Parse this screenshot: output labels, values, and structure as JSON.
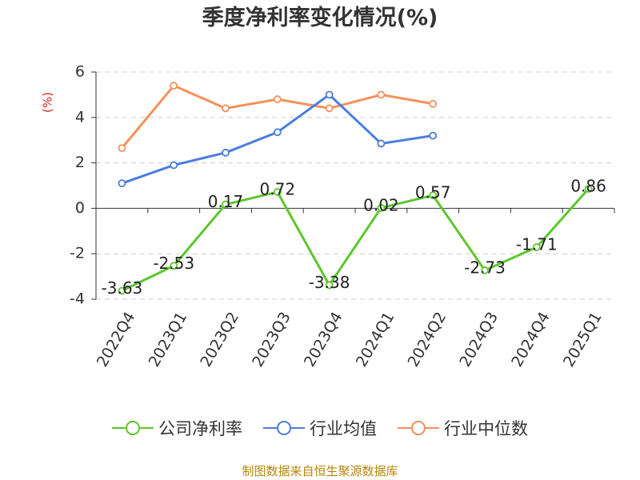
{
  "chart_data": {
    "type": "line",
    "title": "季度净利率变化情况(%)",
    "ylabel": "(%)",
    "xlabel": "",
    "categories": [
      "2022Q4",
      "2023Q1",
      "2023Q2",
      "2023Q3",
      "2023Q4",
      "2024Q1",
      "2024Q2",
      "2024Q3",
      "2024Q4",
      "2025Q1"
    ],
    "ylim": [
      -4,
      6
    ],
    "yticks": [
      -4,
      -2,
      0,
      2,
      4,
      6
    ],
    "grid": "horizontal-dashed",
    "legend_position": "bottom",
    "series": [
      {
        "name": "公司净利率",
        "color": "#5cc72c",
        "values": [
          -3.63,
          -2.53,
          0.17,
          0.72,
          -3.38,
          0.02,
          0.57,
          -2.73,
          -1.71,
          0.86
        ],
        "labels": [
          "-3.63",
          "-2.53",
          "0.17",
          "0.72",
          "-3.38",
          "0.02",
          "0.57",
          "-2.73",
          "-1.71",
          "0.86"
        ]
      },
      {
        "name": "行业均值",
        "color": "#4a7ee0",
        "values": [
          1.1,
          1.9,
          2.45,
          3.35,
          5.0,
          2.85,
          3.2,
          null,
          null,
          null
        ]
      },
      {
        "name": "行业中位数",
        "color": "#f79059",
        "values": [
          2.65,
          5.4,
          4.4,
          4.8,
          4.4,
          5.0,
          4.6,
          null,
          null,
          null
        ]
      }
    ]
  },
  "source": "制图数据来自恒生聚源数据库"
}
